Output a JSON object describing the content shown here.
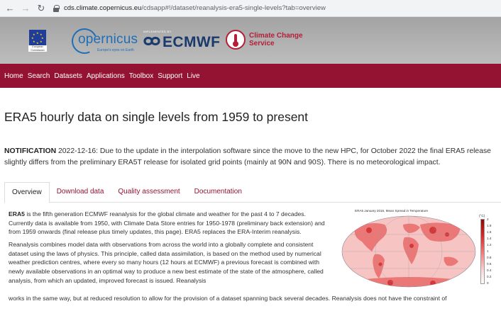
{
  "browser": {
    "url_host": "cds.climate.copernicus.eu",
    "url_path": "/cdsapp#!/dataset/reanalysis-era5-single-levels?tab=overview"
  },
  "header": {
    "eu_label": "European Commission",
    "copernicus_name": "opernicus",
    "copernicus_tagline": "Europe's eyes on Earth",
    "implemented_by": "IMPLEMENTED BY",
    "ecmwf_name": "ECMWF",
    "c3s_line1": "Climate Change",
    "c3s_line2": "Service"
  },
  "nav": [
    "Home",
    "Search",
    "Datasets",
    "Applications",
    "Toolbox",
    "Support",
    "Live"
  ],
  "title": "ERA5 hourly data on single levels from 1959 to present",
  "notification": {
    "label": "NOTIFICATION",
    "text": " 2022-12-16: Due to the update in the interpolation software since the move to the new HPC, for October 2022 the final ERA5 release slightly differs from the preliminary ERA5T release for isolated grid points (mainly at 90N and 90S). There is no meteorological impact."
  },
  "tabs": [
    "Overview",
    "Download data",
    "Quality assessment",
    "Documentation"
  ],
  "overview": {
    "p1_bold": "ERA5",
    "p1_text": " is the fifth generation ECMWF reanalysis for the global climate and weather for the past 4 to 7 decades. Currently data is available from 1950, with Climate Data Store entries for 1950-1978 (preliminary back extension) and from 1959 onwards (final release plus timely updates, this page). ERA5 replaces the ERA-Interim reanalysis.",
    "p2_text": "Reanalysis combines model data with observations from across the world into a globally complete and consistent dataset using the laws of physics. This principle, called data assimilation, is based on the method used by numerical weather prediction centres, where every so many hours (12 hours at ECMWF) a previous forecast is combined with newly available observations in an optimal way to produce a new best estimate of the state of the atmosphere, called analysis, from which an updated, improved forecast is issued. Reanalysis",
    "p2_cont": "works in the same way, but at reduced resolution to allow for the provision of a dataset spanning back several decades. Reanalysis does not have the constraint of"
  },
  "figure": {
    "title": "ERA5 January 2016, Mean Spread in Temperature",
    "unit": "(°C)",
    "colorbar_ticks": [
      "2",
      "1.8",
      "1.6",
      "1.4",
      "1.2",
      "1",
      "0.8",
      "0.6",
      "0.4",
      "0.2",
      "0"
    ]
  },
  "colors": {
    "brand": "#941333",
    "link": "#941333"
  }
}
